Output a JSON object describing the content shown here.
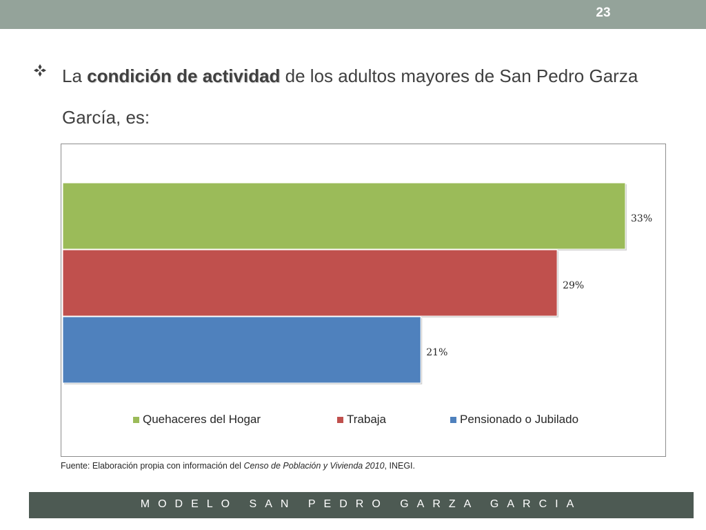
{
  "slide": {
    "number": "23",
    "headline": {
      "prefix": "La ",
      "emphasis": "condición de actividad",
      "suffix": " de los adultos mayores de San Pedro Garza García, es:"
    },
    "source": {
      "prefix": "Fuente: Elaboración propia con información del ",
      "italic": "Censo de Población y Vivienda  2010",
      "suffix": ", INEGI."
    },
    "footer": "MODELO SAN PEDRO GARZA GARCIA"
  },
  "colors": {
    "top_bar": "#94a39a",
    "bottom_bar": "#4d5a53",
    "bullet": "#3f3f3f"
  },
  "icons": {
    "bullet": "diamond-bullet-icon"
  },
  "chart_data": {
    "type": "bar",
    "orientation": "horizontal",
    "title": "",
    "xlabel": "",
    "ylabel": "",
    "xlim": [
      0,
      33
    ],
    "grid": false,
    "legend_position": "bottom",
    "series": [
      {
        "name": "Quehaceres del Hogar",
        "value": 33,
        "label": "33%",
        "color": "#9bbb59"
      },
      {
        "name": "Trabaja",
        "value": 29,
        "label": "29%",
        "color": "#c0504d"
      },
      {
        "name": "Pensionado o Jubilado",
        "value": 21,
        "label": "21%",
        "color": "#4f81bd"
      }
    ]
  }
}
